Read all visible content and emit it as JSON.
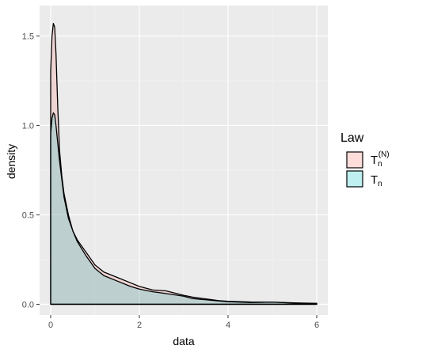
{
  "chart_data": {
    "type": "area",
    "title": "",
    "xlabel": "data",
    "ylabel": "density",
    "xlim": [
      -0.25,
      6.25
    ],
    "ylim": [
      -0.06,
      1.67
    ],
    "x_ticks": [
      0,
      2,
      4,
      6
    ],
    "x_tick_labels": [
      "0",
      "2",
      "4",
      "6"
    ],
    "y_ticks": [
      0.0,
      0.5,
      1.0,
      1.5
    ],
    "y_tick_labels": [
      "0.0",
      "0.5",
      "1.0",
      "1.5"
    ],
    "grid": true,
    "background": "#ebebeb",
    "legend": {
      "title": "Law",
      "placement": "right",
      "entries": [
        {
          "main": "T",
          "sub": "n",
          "sup": "(N)",
          "color": "#f8766d"
        },
        {
          "main": "T",
          "sub": "n",
          "sup": "",
          "color": "#00bfc4"
        }
      ]
    },
    "series": [
      {
        "label": "Tn(N)",
        "color": "#f8766d",
        "fill_opacity": 0.2,
        "x": [
          0,
          0.03,
          0.06,
          0.09,
          0.12,
          0.16,
          0.2,
          0.25,
          0.3,
          0.4,
          0.5,
          0.6,
          0.8,
          1.0,
          1.2,
          1.5,
          1.8,
          2.0,
          2.3,
          2.6,
          3.0,
          3.2,
          3.5,
          3.8,
          4.0,
          4.5,
          5.0,
          5.5,
          6.0
        ],
        "y": [
          1.3,
          1.5,
          1.57,
          1.55,
          1.4,
          1.1,
          0.86,
          0.72,
          0.62,
          0.5,
          0.41,
          0.36,
          0.29,
          0.22,
          0.18,
          0.15,
          0.12,
          0.1,
          0.08,
          0.075,
          0.05,
          0.04,
          0.03,
          0.02,
          0.017,
          0.013,
          0.012,
          0.008,
          0.005
        ]
      },
      {
        "label": "Tn",
        "color": "#00bfc4",
        "fill_opacity": 0.2,
        "x": [
          0,
          0.03,
          0.06,
          0.09,
          0.12,
          0.16,
          0.2,
          0.25,
          0.3,
          0.4,
          0.5,
          0.6,
          0.8,
          1.0,
          1.2,
          1.5,
          1.8,
          2.0,
          2.3,
          2.6,
          3.0,
          3.2,
          3.5,
          3.8,
          4.0,
          4.5,
          5.0,
          5.5,
          6.0
        ],
        "y": [
          0.95,
          1.04,
          1.07,
          1.06,
          1.0,
          0.9,
          0.8,
          0.7,
          0.6,
          0.48,
          0.41,
          0.35,
          0.27,
          0.2,
          0.16,
          0.13,
          0.1,
          0.085,
          0.07,
          0.06,
          0.045,
          0.032,
          0.025,
          0.018,
          0.014,
          0.01,
          0.012,
          0.006,
          0.004
        ]
      }
    ]
  }
}
